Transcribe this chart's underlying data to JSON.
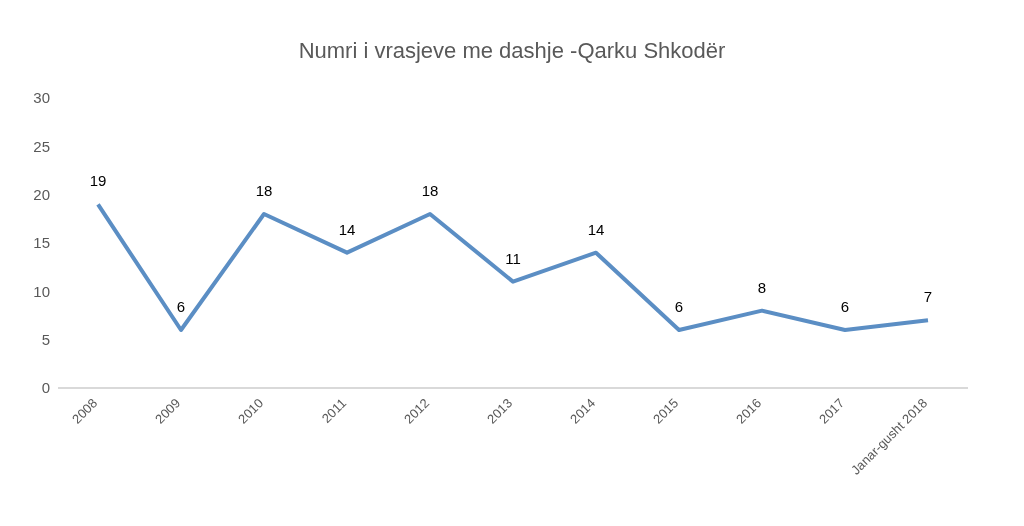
{
  "chart_data": {
    "type": "line",
    "title": "Numri i vrasjeve me dashje -Qarku Shkodër",
    "categories": [
      "2008",
      "2009",
      "2010",
      "2011",
      "2012",
      "2013",
      "2014",
      "2015",
      "2016",
      "2017",
      "Janar-gusht 2018"
    ],
    "values": [
      19,
      6,
      18,
      14,
      18,
      11,
      14,
      6,
      8,
      6,
      7
    ],
    "color": "#5b8ec4",
    "ylim": [
      0,
      30
    ],
    "yticks": [
      0,
      5,
      10,
      15,
      20,
      25,
      30
    ],
    "grid": false,
    "marker": "none",
    "data_labels": true
  }
}
